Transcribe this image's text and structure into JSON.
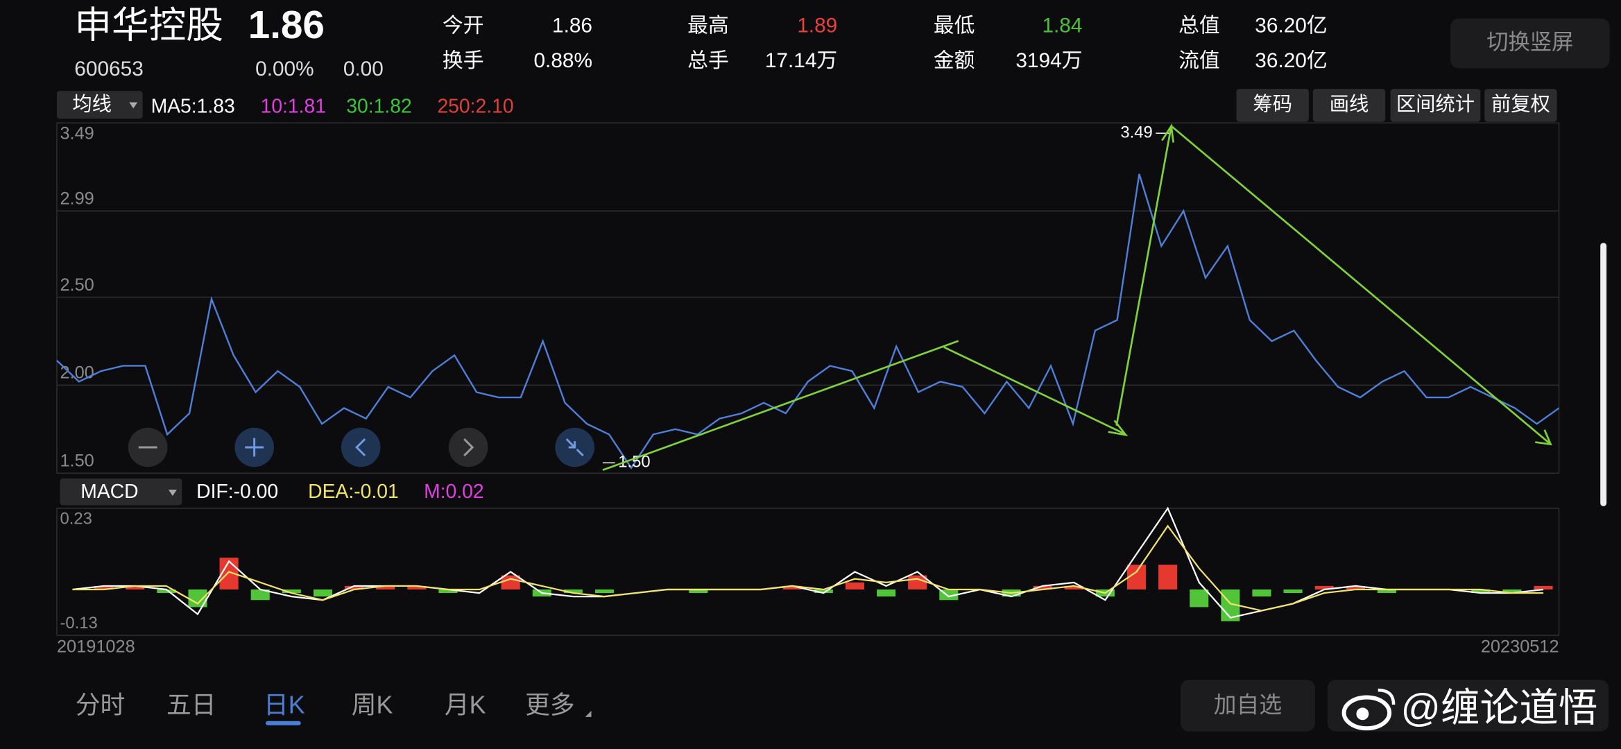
{
  "header": {
    "name": "申华控股",
    "price": "1.86",
    "code": "600653",
    "change_pct": "0.00%",
    "change": "0.00",
    "stats": [
      {
        "label": "今开",
        "value": "1.86",
        "color": "#ffffff"
      },
      {
        "label": "换手",
        "value": "0.88%",
        "color": "#ffffff"
      },
      {
        "label": "最高",
        "value": "1.89",
        "color": "#e8413a"
      },
      {
        "label": "总手",
        "value": "17.14万",
        "color": "#ffffff"
      },
      {
        "label": "最低",
        "value": "1.84",
        "color": "#4cc13a"
      },
      {
        "label": "金额",
        "value": "3194万",
        "color": "#ffffff"
      },
      {
        "label": "总值",
        "value": "36.20亿",
        "color": "#ffffff"
      },
      {
        "label": "流值",
        "value": "36.20亿",
        "color": "#ffffff"
      }
    ],
    "switch_button": "切换竖屏"
  },
  "toolbar": {
    "ma_selector": "均线",
    "ma_items": [
      {
        "text": "MA5:1.83",
        "color": "#ffffff"
      },
      {
        "text": "10:1.81",
        "color": "#e040e0"
      },
      {
        "text": "30:1.82",
        "color": "#3cc53c"
      },
      {
        "text": "250:2.10",
        "color": "#e0403a"
      }
    ],
    "buttons": [
      "筹码",
      "画线",
      "区间统计",
      "前复权"
    ]
  },
  "chart_data": [
    {
      "type": "line",
      "series": [
        {
          "color": "#4f80d9",
          "values": [
            2.14,
            2.02,
            2.08,
            2.11,
            2.11,
            1.72,
            1.84,
            2.49,
            2.17,
            1.96,
            2.08,
            1.99,
            1.78,
            1.87,
            1.81,
            1.99,
            1.93,
            2.08,
            2.17,
            1.96,
            1.93,
            1.93,
            2.25,
            1.9,
            1.78,
            1.72,
            1.53,
            1.72,
            1.75,
            1.72,
            1.81,
            1.84,
            1.9,
            1.84,
            2.02,
            2.11,
            2.08,
            1.87,
            2.22,
            1.96,
            2.02,
            1.99,
            1.84,
            2.02,
            1.87,
            2.11,
            1.78,
            2.31,
            2.37,
            3.2,
            2.79,
            2.99,
            2.61,
            2.79,
            2.37,
            2.25,
            2.31,
            2.14,
            1.99,
            1.93,
            2.02,
            2.08,
            1.93,
            1.93,
            1.99,
            1.93,
            1.87,
            1.78,
            1.87
          ]
        }
      ],
      "ylim": [
        1.5,
        3.49
      ],
      "yticks": [
        3.49,
        2.99,
        {
          "value": 2.5,
          "label": "2.50"
        },
        {
          "value": 2,
          "label": "2.00"
        },
        {
          "value": 1.5,
          "label": "1.50"
        }
      ],
      "grid": true,
      "annotations": [
        {
          "value": 3.49,
          "label": "3.49"
        },
        {
          "value": 1.5,
          "label": "1.50"
        }
      ]
    },
    {
      "type": "macd",
      "selector": "MACD",
      "ylim": [
        -0.13,
        0.23
      ],
      "yticks": [
        0.23,
        -0.13
      ],
      "xlabels": [
        "20191028",
        "20230512"
      ],
      "series": [
        {
          "name": "DIF:-0.00",
          "type": "line",
          "color": "#ffffff",
          "values": [
            0,
            0.01,
            0.01,
            0,
            -0.07,
            0.08,
            0,
            -0.02,
            -0.03,
            0.01,
            0.01,
            0.01,
            0,
            -0.01,
            0.05,
            -0.01,
            -0.02,
            -0.02,
            -0.01,
            0,
            0,
            0,
            0,
            0.01,
            -0.01,
            0.05,
            0.01,
            0.05,
            -0.02,
            0,
            -0.02,
            0.01,
            0.02,
            -0.03,
            0.1,
            0.23,
            0.02,
            -0.08,
            -0.06,
            -0.04,
            0,
            0.01,
            0,
            0,
            0,
            -0.01,
            -0.01,
            0
          ]
        },
        {
          "name": "DEA:-0.01",
          "type": "line",
          "color": "#f2e36b",
          "values": [
            0,
            0,
            0.01,
            0.01,
            -0.04,
            0.05,
            0.02,
            -0.01,
            -0.03,
            0,
            0.01,
            0.01,
            0,
            0,
            0.03,
            0.01,
            -0.01,
            -0.02,
            -0.01,
            0,
            0,
            0,
            0,
            0.01,
            0,
            0.03,
            0.02,
            0.03,
            0,
            0,
            -0.01,
            0,
            0.01,
            -0.01,
            0.05,
            0.18,
            0.06,
            -0.04,
            -0.06,
            -0.04,
            -0.01,
            0,
            0,
            0,
            0,
            0,
            -0.01,
            -0.01
          ]
        },
        {
          "name": "M:0.02",
          "type": "bar",
          "color": "#e040e0",
          "up_color": "#e5392f",
          "down_color": "#52c43a",
          "values": [
            0,
            0.01,
            0.01,
            -0.01,
            -0.05,
            0.09,
            -0.03,
            -0.01,
            -0.02,
            0.01,
            0.01,
            0.01,
            -0.01,
            0,
            0.04,
            -0.02,
            -0.01,
            -0.01,
            0,
            0,
            -0.01,
            0,
            0,
            0.01,
            -0.01,
            0.02,
            -0.02,
            0.04,
            -0.03,
            0,
            -0.02,
            0.01,
            0.01,
            -0.02,
            0.07,
            0.07,
            -0.05,
            -0.09,
            -0.02,
            -0.01,
            0.01,
            0.01,
            -0.01,
            0,
            0,
            -0.01,
            -0.01,
            0.01
          ]
        }
      ]
    }
  ],
  "tabs": [
    "分时",
    "五日",
    "日K",
    "周K",
    "月K",
    "更多"
  ],
  "active_tab": 2,
  "add_watchlist": "加自选",
  "watermark": "@缠论道悟"
}
